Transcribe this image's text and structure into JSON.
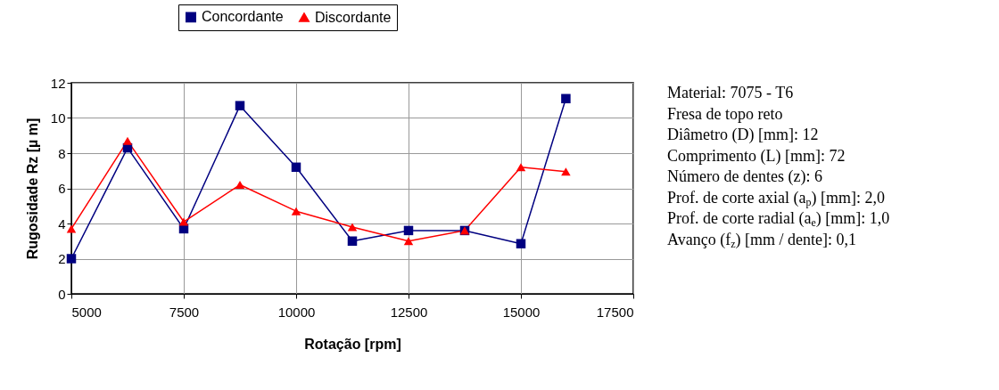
{
  "chart_data": {
    "type": "line",
    "xlabel": "Rotação [rpm]",
    "ylabel": "Rugosidade Rz [µ m]",
    "x": [
      5000,
      6250,
      7500,
      8750,
      10000,
      11250,
      12500,
      13750,
      15000,
      16000
    ],
    "series": [
      {
        "name": "Concordante",
        "color": "#000080",
        "marker": "square",
        "values": [
          2.0,
          8.3,
          3.7,
          10.7,
          7.2,
          3.0,
          3.6,
          3.6,
          2.85,
          11.1
        ]
      },
      {
        "name": "Discordante",
        "color": "#ff0000",
        "marker": "triangle",
        "values": [
          3.7,
          8.7,
          4.1,
          6.2,
          4.7,
          3.8,
          3.0,
          3.6,
          7.2,
          6.95
        ]
      }
    ],
    "xlim": [
      5000,
      17500
    ],
    "xticks": [
      5000,
      7500,
      10000,
      12500,
      15000,
      17500
    ],
    "ylim": [
      0,
      12
    ],
    "yticks": [
      0,
      2,
      4,
      6,
      8,
      10,
      12
    ],
    "grid": true,
    "legend": "top",
    "line_style": "solid",
    "annotations": [
      "Material: 7075 - T6",
      "Fresa de topo reto",
      "Diâmetro (D) [mm]: 12",
      "Comprimento (L) [mm]: 72",
      "Número de dentes (z): 6",
      "Prof. de corte axial (a$_{p}$) [mm]: 2,0",
      "Prof. de corte radial (a$_{e}$) [mm]: 1,0",
      "Avanço (f$_{z}$) [mm / dente]: 0,1"
    ]
  }
}
